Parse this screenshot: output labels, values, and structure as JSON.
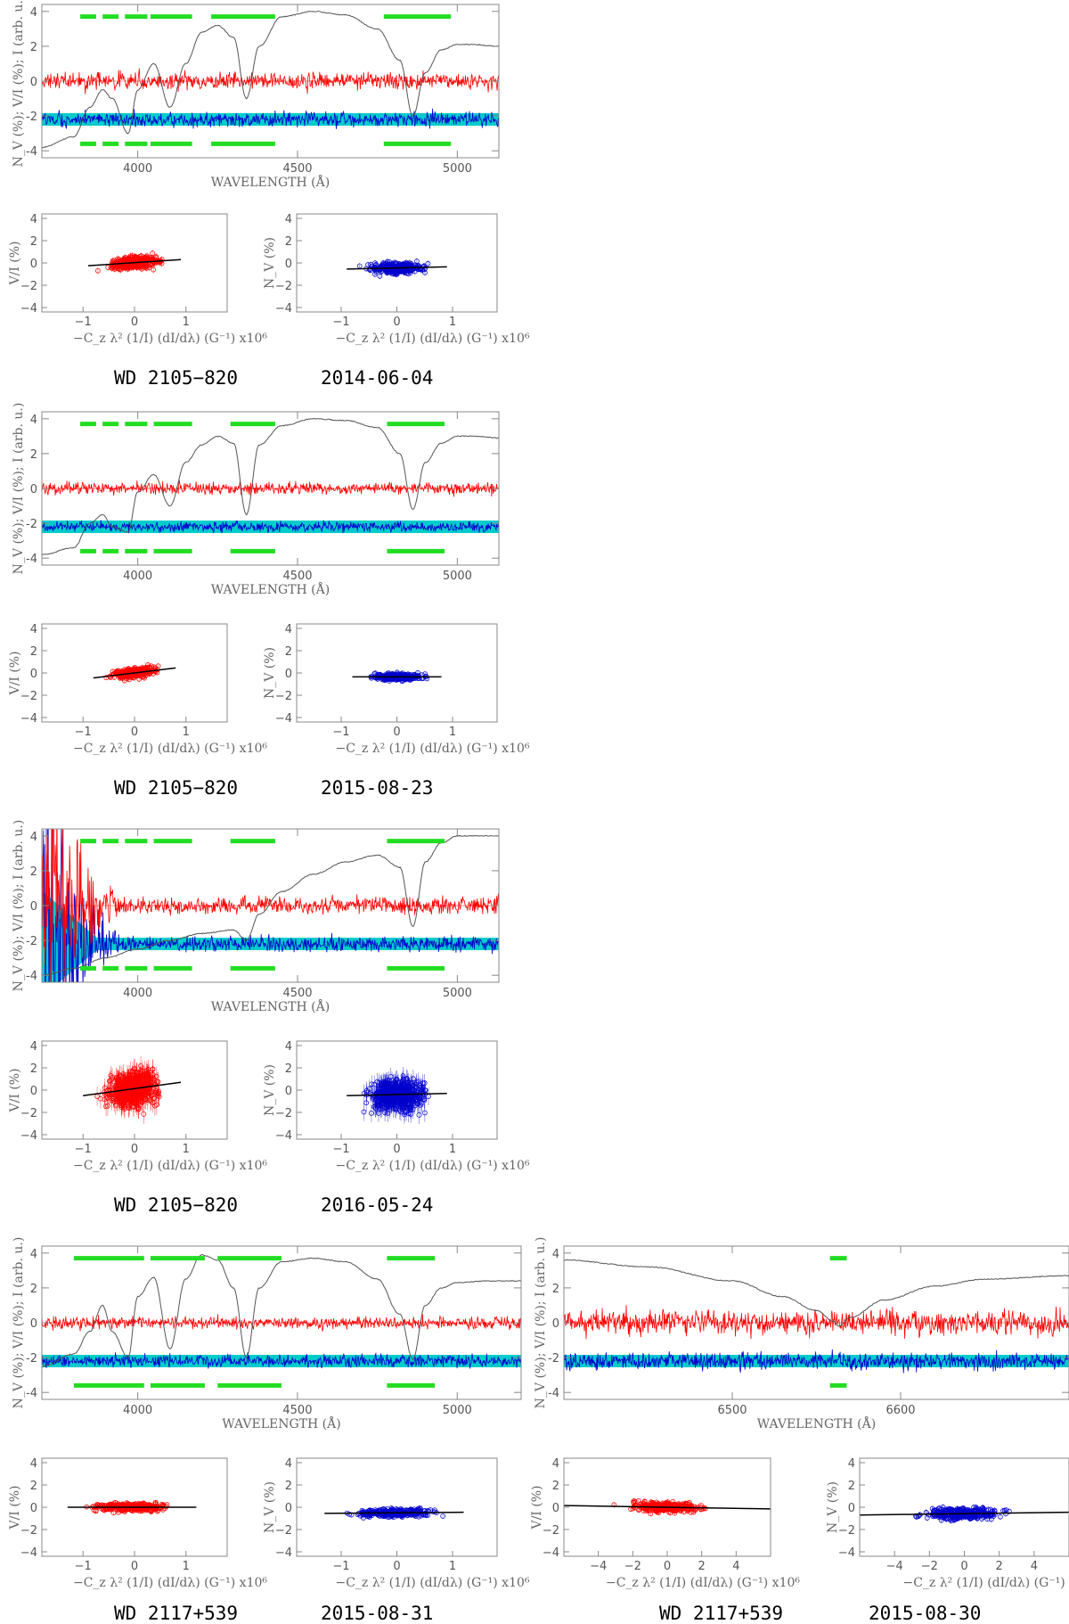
{
  "colors": {
    "v_over_i": "#ff0000",
    "nv": "#0000cc",
    "nv_band": "#00cccc",
    "intensity": "#555555",
    "mask": "#22dd22",
    "frame": "#888888",
    "fit_line": "#000000",
    "zero_line": "#ff9999"
  },
  "labels": {
    "spectrum_xlabel": "WAVELENGTH (Å)",
    "spectrum_ylabel": "N_V (%); V/I (%); I (arb. u.)",
    "scatter_xlabel": "−C_z λ² (1/I) (dI/dλ) (G⁻¹) x10⁶",
    "scatter_ylabel_v": "V/I (%)",
    "scatter_ylabel_n": "N_V (%)"
  },
  "panels": [
    {
      "star": "WD 2105−820",
      "date": "2014-06-04",
      "chart_data": {
        "type": "line",
        "xlim": [
          3700,
          5130
        ],
        "ylim": [
          -4.4,
          4.4
        ],
        "x_ticks": [
          4000,
          4500,
          5000
        ],
        "y_ticks": [
          -4,
          -2,
          0,
          2,
          4
        ],
        "series": [
          {
            "name": "I",
            "color_key": "intensity",
            "x": [
              3700,
              3800,
              3850,
              3890,
              3920,
              3970,
              4000,
              4050,
              4101,
              4150,
              4200,
              4250,
              4300,
              4340,
              4380,
              4450,
              4550,
              4650,
              4750,
              4820,
              4861,
              4900,
              4950,
              5000,
              5050,
              5130
            ],
            "y": [
              -3.8,
              -3.2,
              -1.5,
              -0.5,
              -1.0,
              -3.0,
              -0.5,
              1.0,
              -1.5,
              1.0,
              2.8,
              3.2,
              2.5,
              -1.0,
              2.0,
              3.7,
              4.0,
              3.8,
              3.0,
              1.2,
              -2.0,
              0.5,
              1.8,
              2.1,
              2.1,
              2.0
            ]
          },
          {
            "name": "V/I",
            "color_key": "v_over_i",
            "level": 0,
            "noise": 0.35
          },
          {
            "name": "N_V",
            "color_key": "nv",
            "level": -2.2,
            "noise": 0.3
          }
        ],
        "mask_bands_top": [
          [
            3820,
            3870
          ],
          [
            3890,
            3940
          ],
          [
            3960,
            4030
          ],
          [
            4040,
            4170
          ],
          [
            4230,
            4430
          ],
          [
            4770,
            4980
          ]
        ],
        "mask_bands_bottom": [
          [
            3820,
            3870
          ],
          [
            3890,
            3940
          ],
          [
            3960,
            4030
          ],
          [
            4040,
            4170
          ],
          [
            4230,
            4430
          ],
          [
            4770,
            4980
          ]
        ],
        "mask_y_top": 3.7,
        "mask_y_bottom": -3.6
      },
      "scatter_v": {
        "xlim": [
          -1.8,
          1.8
        ],
        "ylim": [
          -4.4,
          4.4
        ],
        "x_ticks": [
          -1,
          0,
          1
        ],
        "cloud_x": [
          -0.9,
          0.9
        ],
        "cloud_y_sd": 0.4,
        "fit": [
          [
            -0.9,
            -0.25
          ],
          [
            0.9,
            0.3
          ]
        ]
      },
      "scatter_n": {
        "xlim": [
          -1.8,
          1.8
        ],
        "ylim": [
          -4.4,
          4.4
        ],
        "x_ticks": [
          -1,
          0,
          1
        ],
        "cloud_x": [
          -0.9,
          0.9
        ],
        "cloud_y_sd": 0.35,
        "fit": [
          [
            -0.9,
            -0.55
          ],
          [
            0.9,
            -0.35
          ]
        ]
      }
    },
    {
      "star": "WD 2105−820",
      "date": "2015-08-23",
      "chart_data": {
        "type": "line",
        "xlim": [
          3700,
          5130
        ],
        "ylim": [
          -4.4,
          4.4
        ],
        "x_ticks": [
          4000,
          4500,
          5000
        ],
        "y_ticks": [
          -4,
          -2,
          0,
          2,
          4
        ],
        "series": [
          {
            "name": "I",
            "color_key": "intensity",
            "x": [
              3700,
              3800,
              3850,
              3890,
              3920,
              3970,
              4000,
              4050,
              4101,
              4150,
              4200,
              4250,
              4300,
              4340,
              4380,
              4450,
              4550,
              4650,
              4750,
              4820,
              4861,
              4900,
              4950,
              5000,
              5050,
              5130
            ],
            "y": [
              -3.8,
              -3.4,
              -2.0,
              -1.5,
              -2.2,
              -2.5,
              -0.2,
              0.8,
              -1.0,
              1.5,
              2.5,
              3.0,
              2.6,
              -1.5,
              2.5,
              3.6,
              4.0,
              3.9,
              3.5,
              2.0,
              -1.2,
              1.5,
              2.6,
              3.0,
              3.0,
              2.9
            ]
          },
          {
            "name": "V/I",
            "color_key": "v_over_i",
            "level": 0,
            "noise": 0.25
          },
          {
            "name": "N_V",
            "color_key": "nv",
            "level": -2.2,
            "noise": 0.2
          }
        ],
        "mask_bands_top": [
          [
            3820,
            3870
          ],
          [
            3890,
            3940
          ],
          [
            3960,
            4030
          ],
          [
            4050,
            4170
          ],
          [
            4290,
            4430
          ],
          [
            4780,
            4960
          ]
        ],
        "mask_bands_bottom": [
          [
            3820,
            3870
          ],
          [
            3890,
            3940
          ],
          [
            3960,
            4030
          ],
          [
            4050,
            4170
          ],
          [
            4290,
            4430
          ],
          [
            4780,
            4960
          ]
        ],
        "mask_y_top": 3.7,
        "mask_y_bottom": -3.6
      },
      "scatter_v": {
        "xlim": [
          -1.8,
          1.8
        ],
        "ylim": [
          -4.4,
          4.4
        ],
        "x_ticks": [
          -1,
          0,
          1
        ],
        "cloud_x": [
          -0.8,
          0.8
        ],
        "cloud_y_sd": 0.3,
        "fit": [
          [
            -0.8,
            -0.45
          ],
          [
            0.8,
            0.45
          ]
        ]
      },
      "scatter_n": {
        "xlim": [
          -1.8,
          1.8
        ],
        "ylim": [
          -4.4,
          4.4
        ],
        "x_ticks": [
          -1,
          0,
          1
        ],
        "cloud_x": [
          -0.8,
          0.8
        ],
        "cloud_y_sd": 0.2,
        "fit": [
          [
            -0.8,
            -0.35
          ],
          [
            0.8,
            -0.35
          ]
        ]
      }
    },
    {
      "star": "WD 2105−820",
      "date": "2016-05-24",
      "chart_data": {
        "type": "line",
        "xlim": [
          3700,
          5130
        ],
        "ylim": [
          -4.4,
          4.4
        ],
        "x_ticks": [
          4000,
          4500,
          5000
        ],
        "y_ticks": [
          -4,
          -2,
          0,
          2,
          4
        ],
        "series": [
          {
            "name": "I",
            "color_key": "intensity",
            "x": [
              3700,
              3800,
              3900,
              4000,
              4100,
              4200,
              4300,
              4340,
              4380,
              4450,
              4550,
              4650,
              4750,
              4820,
              4861,
              4900,
              4950,
              5000,
              5050,
              5130
            ],
            "y": [
              -4.0,
              -3.6,
              -3.0,
              -2.5,
              -2.0,
              -1.6,
              -1.4,
              -2.0,
              -0.5,
              0.8,
              1.8,
              2.5,
              2.9,
              2.2,
              -1.2,
              2.5,
              3.6,
              4.0,
              4.0,
              4.0
            ]
          },
          {
            "name": "V/I",
            "color_key": "v_over_i",
            "level": 0,
            "noise": 0.35,
            "noise_blue_end": 3.0
          },
          {
            "name": "N_V",
            "color_key": "nv",
            "level": -2.2,
            "noise": 0.3,
            "noise_blue_end": 3.0
          }
        ],
        "mask_bands_top": [
          [
            3820,
            3870
          ],
          [
            3890,
            3940
          ],
          [
            3960,
            4030
          ],
          [
            4050,
            4170
          ],
          [
            4290,
            4430
          ],
          [
            4780,
            4960
          ]
        ],
        "mask_bands_bottom": [
          [
            3820,
            3870
          ],
          [
            3890,
            3940
          ],
          [
            3960,
            4030
          ],
          [
            4050,
            4170
          ],
          [
            4290,
            4430
          ],
          [
            4780,
            4960
          ]
        ],
        "mask_y_top": 3.7,
        "mask_y_bottom": -3.6
      },
      "scatter_v": {
        "xlim": [
          -1.8,
          1.8
        ],
        "ylim": [
          -4.4,
          4.4
        ],
        "x_ticks": [
          -1,
          0,
          1
        ],
        "cloud_x": [
          -1.0,
          0.9
        ],
        "cloud_y_sd": 1.1,
        "fit": [
          [
            -1.0,
            -0.5
          ],
          [
            0.9,
            0.7
          ]
        ]
      },
      "scatter_n": {
        "xlim": [
          -1.8,
          1.8
        ],
        "ylim": [
          -4.4,
          4.4
        ],
        "x_ticks": [
          -1,
          0,
          1
        ],
        "cloud_x": [
          -0.9,
          0.9
        ],
        "cloud_y_sd": 1.0,
        "fit": [
          [
            -0.9,
            -0.5
          ],
          [
            0.9,
            -0.3
          ]
        ]
      }
    },
    {
      "star": "WD 2117+539",
      "date": "2015-08-31",
      "chart_data": {
        "type": "line",
        "xlim": [
          3700,
          5200
        ],
        "ylim": [
          -4.4,
          4.4
        ],
        "x_ticks": [
          4000,
          4500,
          5000
        ],
        "y_ticks": [
          -4,
          -2,
          0,
          2,
          4
        ],
        "series": [
          {
            "name": "I",
            "color_key": "intensity",
            "x": [
              3700,
              3800,
              3850,
              3890,
              3920,
              3970,
              4000,
              4050,
              4101,
              4150,
              4200,
              4250,
              4300,
              4340,
              4380,
              4450,
              4550,
              4650,
              4750,
              4820,
              4861,
              4900,
              4950,
              5000,
              5100,
              5200
            ],
            "y": [
              -2.5,
              -1.8,
              -0.5,
              1.0,
              -0.5,
              -2.0,
              1.5,
              2.6,
              -1.5,
              2.5,
              3.9,
              3.6,
              2.0,
              -2.0,
              2.0,
              3.5,
              3.7,
              3.5,
              2.5,
              0.5,
              -2.1,
              1.0,
              2.0,
              2.3,
              2.4,
              2.4
            ]
          },
          {
            "name": "V/I",
            "color_key": "v_over_i",
            "level": 0,
            "noise": 0.25
          },
          {
            "name": "N_V",
            "color_key": "nv",
            "level": -2.2,
            "noise": 0.25
          }
        ],
        "mask_bands_top": [
          [
            3800,
            4020
          ],
          [
            4040,
            4210
          ],
          [
            4250,
            4450
          ],
          [
            4780,
            4930
          ]
        ],
        "mask_bands_bottom": [
          [
            3800,
            4020
          ],
          [
            4040,
            4210
          ],
          [
            4250,
            4450
          ],
          [
            4780,
            4930
          ]
        ],
        "mask_y_top": 3.7,
        "mask_y_bottom": -3.6
      },
      "scatter_v": {
        "xlim": [
          -1.8,
          1.8
        ],
        "ylim": [
          -4.4,
          4.4
        ],
        "x_ticks": [
          -1,
          0,
          1
        ],
        "cloud_x": [
          -1.3,
          1.2
        ],
        "cloud_y_sd": 0.25,
        "fit": [
          [
            -1.3,
            0.0
          ],
          [
            1.2,
            0.0
          ]
        ]
      },
      "scatter_n": {
        "xlim": [
          -1.8,
          1.8
        ],
        "ylim": [
          -4.4,
          4.4
        ],
        "x_ticks": [
          -1,
          0,
          1
        ],
        "cloud_x": [
          -1.3,
          1.2
        ],
        "cloud_y_sd": 0.25,
        "fit": [
          [
            -1.3,
            -0.55
          ],
          [
            1.2,
            -0.45
          ]
        ]
      }
    },
    {
      "star": "WD 2117+539",
      "date": "2015-08-30",
      "chart_data": {
        "type": "line",
        "xlim": [
          6400,
          6700
        ],
        "ylim": [
          -4.4,
          4.4
        ],
        "x_ticks": [
          6500,
          6600
        ],
        "y_ticks": [
          -4,
          -2,
          0,
          2,
          4
        ],
        "series": [
          {
            "name": "I",
            "color_key": "intensity",
            "x": [
              6400,
              6450,
              6500,
              6530,
              6550,
              6560,
              6563,
              6570,
              6590,
              6620,
              6650,
              6700
            ],
            "y": [
              3.6,
              3.2,
              2.4,
              1.5,
              0.7,
              0.1,
              -0.2,
              0.3,
              1.3,
              2.1,
              2.5,
              2.7
            ]
          },
          {
            "name": "V/I",
            "color_key": "v_over_i",
            "level": 0,
            "noise": 0.5
          },
          {
            "name": "N_V",
            "color_key": "nv",
            "level": -2.2,
            "noise": 0.35
          }
        ],
        "mask_bands_top": [
          [
            6558,
            6568
          ]
        ],
        "mask_bands_bottom": [
          [
            6558,
            6568
          ]
        ],
        "mask_y_top": 3.7,
        "mask_y_bottom": -3.6
      },
      "scatter_v": {
        "xlim": [
          -6,
          6
        ],
        "ylim": [
          -4.4,
          4.4
        ],
        "x_ticks": [
          -4,
          -2,
          0,
          2,
          4
        ],
        "cloud_x": [
          -4.0,
          3.7
        ],
        "cloud_y_sd": 0.3,
        "fit": [
          [
            -6,
            0.15
          ],
          [
            6,
            -0.15
          ]
        ]
      },
      "scatter_n": {
        "xlim": [
          -6,
          6
        ],
        "ylim": [
          -4.4,
          4.4
        ],
        "x_ticks": [
          -4,
          -2,
          0,
          2,
          4
        ],
        "cloud_x": [
          -4.0,
          3.7
        ],
        "cloud_y_sd": 0.35,
        "fit": [
          [
            -6,
            -0.7
          ],
          [
            6,
            -0.45
          ]
        ]
      }
    }
  ]
}
